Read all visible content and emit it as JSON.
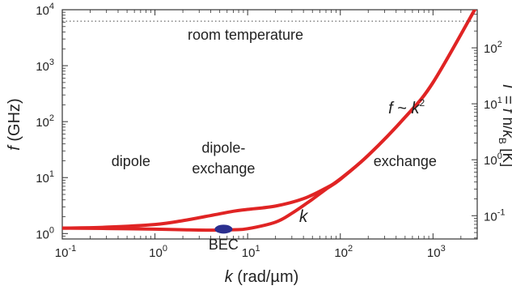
{
  "chart_data": {
    "type": "line",
    "x_scale": "log",
    "y_scale": "log",
    "xlim": [
      0.1,
      3000
    ],
    "ylim": [
      0.8,
      10000
    ],
    "xlabel": {
      "var": "k",
      "unit": " (rad/µm)"
    },
    "ylabel": {
      "var": "f",
      "unit": " (GHz)"
    },
    "ylabel_right": {
      "lead": "T = ",
      "f": "f",
      "h": " h/",
      "kb": "k",
      "kb_sub": "B",
      "unit": " [K]"
    },
    "x_ticks": [
      {
        "value": 0.1,
        "base": "10",
        "exp": "-1"
      },
      {
        "value": 1,
        "base": "10",
        "exp": "0"
      },
      {
        "value": 10,
        "base": "10",
        "exp": "1"
      },
      {
        "value": 100,
        "base": "10",
        "exp": "2"
      },
      {
        "value": 1000,
        "base": "10",
        "exp": "3"
      }
    ],
    "y_ticks": [
      {
        "value": 1,
        "base": "10",
        "exp": "0"
      },
      {
        "value": 10,
        "base": "10",
        "exp": "1"
      },
      {
        "value": 100,
        "base": "10",
        "exp": "2"
      },
      {
        "value": 1000,
        "base": "10",
        "exp": "3"
      },
      {
        "value": 10000,
        "base": "10",
        "exp": "4"
      }
    ],
    "y_ticks_right": [
      {
        "value": 0.1,
        "base": "10",
        "exp": "-1"
      },
      {
        "value": 1,
        "base": "10",
        "exp": "0"
      },
      {
        "value": 10,
        "base": "10",
        "exp": "1"
      },
      {
        "value": 100,
        "base": "10",
        "exp": "2"
      }
    ],
    "right_axis_factor_GHz_per_K": 20.84,
    "series": [
      {
        "color": "#e02424",
        "x": [
          0.1,
          0.3,
          1,
          2,
          4,
          7,
          10,
          20,
          40,
          70,
          100,
          200,
          500,
          1000,
          3000
        ],
        "y": [
          1.25,
          1.3,
          1.45,
          1.7,
          2.1,
          2.5,
          2.7,
          3.1,
          4.2,
          6.5,
          9.5,
          25,
          120,
          500,
          12000
        ]
      },
      {
        "color": "#e02424",
        "x": [
          0.1,
          0.3,
          1,
          2,
          4,
          7,
          10,
          20,
          30,
          50,
          70,
          100,
          200,
          500,
          1000,
          3000
        ],
        "y": [
          1.25,
          1.23,
          1.2,
          1.17,
          1.15,
          1.17,
          1.22,
          1.6,
          2.3,
          4.1,
          6.2,
          9.3,
          25,
          120,
          500,
          12000
        ]
      }
    ],
    "reference_lines": [
      {
        "y": 6250,
        "style": "dotted",
        "label": "room temperature"
      }
    ],
    "markers": [
      {
        "x": 5.5,
        "y": 1.2,
        "color": "#2b2f8f",
        "label": "BEC"
      }
    ],
    "annotations": [
      {
        "text": "dipole",
        "x": 0.55,
        "y": 16
      },
      {
        "text": "dipole-",
        "x": 5.5,
        "y": 28
      },
      {
        "text": "exchange",
        "x": 5.5,
        "y": 12
      },
      {
        "text": "exchange",
        "x": 500,
        "y": 16
      },
      {
        "text": "k",
        "x": 40,
        "y": 1.6,
        "italic": true
      }
    ],
    "formula": {
      "f": "f",
      "sim": " ~ ",
      "k": "k",
      "exp": "2"
    },
    "colors": {
      "curve": "#e02424",
      "marker": "#2b2f8f",
      "axis": "#333333"
    }
  }
}
